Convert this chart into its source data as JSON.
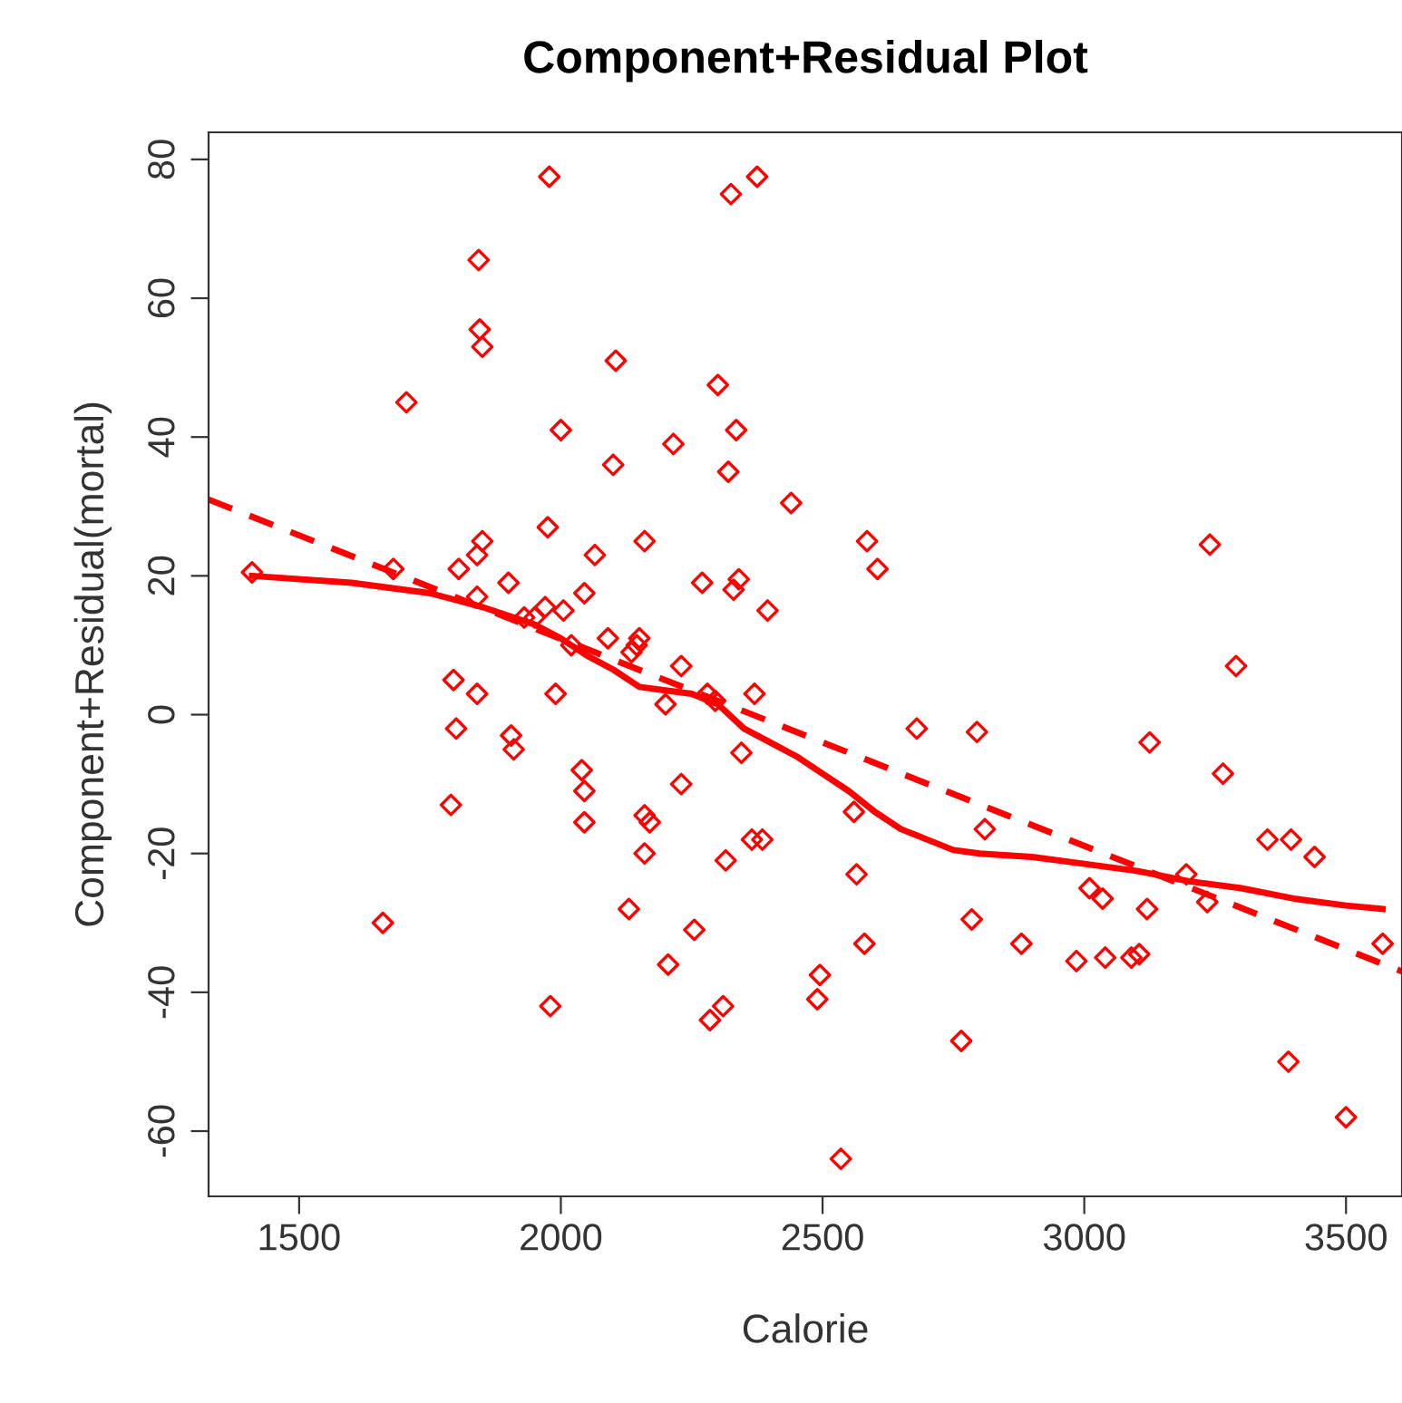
{
  "chart_data": {
    "type": "scatter",
    "title": "Component+Residual Plot",
    "xlabel": "Calorie",
    "ylabel": "Component+Residual(mortal)",
    "xlim": [
      1327,
      3607
    ],
    "ylim": [
      -69.4,
      83.9
    ],
    "xticks": [
      1500,
      2000,
      2500,
      3000,
      3500
    ],
    "yticks": [
      -60,
      -40,
      -20,
      0,
      20,
      40,
      60,
      80
    ],
    "grid": false,
    "series": [
      {
        "color": "#ff0000",
        "marker": "diamond",
        "x": [
          1410,
          1660,
          1680,
          1705,
          1790,
          1795,
          1800,
          1805,
          1840,
          1840,
          1840,
          1843,
          1845,
          1850,
          1850,
          1900,
          1905,
          1910,
          1930,
          1950,
          1970,
          1975,
          1978,
          1980,
          1990,
          2000,
          2005,
          2020,
          2040,
          2045,
          2045,
          2045,
          2065,
          2090,
          2100,
          2105,
          2130,
          2135,
          2145,
          2150,
          2160,
          2160,
          2160,
          2170,
          2200,
          2205,
          2215,
          2230,
          2230,
          2255,
          2270,
          2280,
          2285,
          2295,
          2300,
          2310,
          2315,
          2320,
          2325,
          2330,
          2335,
          2340,
          2345,
          2365,
          2370,
          2375,
          2385,
          2395,
          2440,
          2490,
          2495,
          2535,
          2560,
          2565,
          2580,
          2585,
          2605,
          2680,
          2765,
          2785,
          2795,
          2810,
          2880,
          2985,
          3010,
          3035,
          3040,
          3090,
          3105,
          3120,
          3125,
          3195,
          3235,
          3240,
          3265,
          3290,
          3350,
          3390,
          3395,
          3440,
          3500,
          3570
        ],
        "values": [
          20.5,
          -30,
          21,
          45,
          -13,
          5,
          -2,
          21,
          3,
          17,
          23,
          65.5,
          55.5,
          25,
          53,
          19,
          -3,
          -5,
          14,
          14,
          15.5,
          27,
          77.5,
          -42,
          3,
          41,
          15,
          10,
          -8,
          -11,
          -15.5,
          17.5,
          23,
          11,
          36,
          51,
          -28,
          9,
          10,
          11,
          -20,
          -14.5,
          25,
          -15.5,
          1.5,
          -36,
          39,
          -10,
          7,
          -31,
          19,
          3,
          -44,
          2,
          47.5,
          -42,
          -21,
          35,
          75,
          18,
          41,
          19.5,
          -5.5,
          -18,
          3,
          77.5,
          -18,
          15,
          30.5,
          -41,
          -37.5,
          -64,
          -14,
          -23,
          -33,
          25,
          21,
          -2,
          -47,
          -29.5,
          -2.5,
          -16.5,
          -33,
          -35.5,
          -25,
          -26.5,
          -35,
          -35,
          -34.5,
          -28,
          -4,
          -23,
          -27,
          24.5,
          -8.5,
          7,
          -18,
          -50,
          -18,
          -20.5,
          -58,
          -33
        ]
      },
      {
        "type": "line",
        "color": "#ff0000",
        "line_style": "dashed",
        "x": [
          1327,
          3607
        ],
        "values": [
          31,
          -37
        ]
      },
      {
        "type": "line",
        "color": "#ff0000",
        "line_style": "solid",
        "x": [
          1410,
          1600,
          1750,
          1850,
          1950,
          2000,
          2050,
          2100,
          2150,
          2200,
          2250,
          2300,
          2350,
          2400,
          2450,
          2500,
          2550,
          2600,
          2650,
          2700,
          2750,
          2800,
          2900,
          3000,
          3100,
          3200,
          3300,
          3400,
          3500,
          3570
        ],
        "values": [
          20,
          19,
          17.5,
          15.5,
          13,
          11,
          8.5,
          6.5,
          4,
          3.5,
          3,
          1.5,
          -2,
          -4,
          -6,
          -8.5,
          -11,
          -14,
          -16.5,
          -18,
          -19.5,
          -20,
          -20.5,
          -21.5,
          -22.5,
          -24,
          -25,
          -26.5,
          -27.5,
          -28
        ]
      }
    ]
  }
}
